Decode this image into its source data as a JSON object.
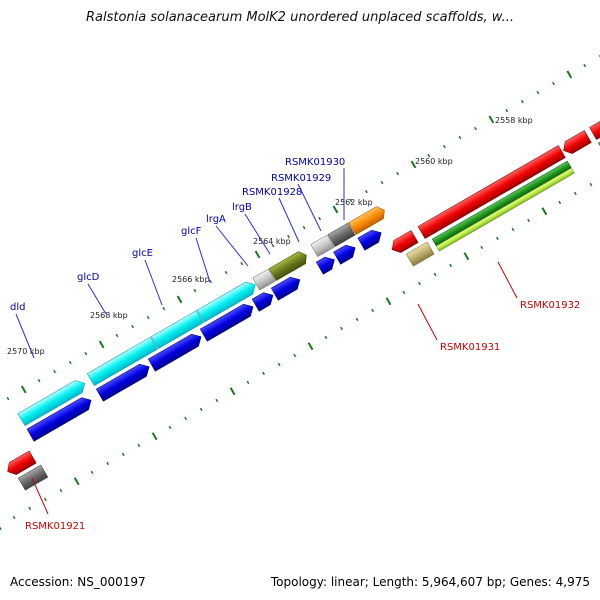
{
  "title": "Ralstonia solanacearum MolK2 unordered unplaced scaffolds, w...",
  "footer": {
    "accession": "Accession: NS_000197",
    "summary": "Topology: linear; Length: 5,964,607 bp; Genes: 4,975"
  },
  "colors": {
    "axis": "#808080",
    "tick": "#1a7a1a",
    "named_label": "#0000b0",
    "locus_label": "#cc0000"
  },
  "kbp_labels": [
    "2558 kbp",
    "2560 kbp",
    "2562 kbp",
    "2564 kbp",
    "2566 kbp",
    "2568 kbp",
    "2570 kbp"
  ],
  "gene_labels": [
    {
      "text": "dld",
      "kind": "named"
    },
    {
      "text": "glcD",
      "kind": "named"
    },
    {
      "text": "glcE",
      "kind": "named"
    },
    {
      "text": "glcF",
      "kind": "named"
    },
    {
      "text": "lrgA",
      "kind": "named"
    },
    {
      "text": "lrgB",
      "kind": "named"
    },
    {
      "text": "RSMK01928",
      "kind": "named"
    },
    {
      "text": "RSMK01929",
      "kind": "named"
    },
    {
      "text": "RSMK01930",
      "kind": "named"
    },
    {
      "text": "RSMK01921",
      "kind": "locus"
    },
    {
      "text": "RSMK01931",
      "kind": "locus"
    },
    {
      "text": "RSMK01932",
      "kind": "locus"
    }
  ]
}
